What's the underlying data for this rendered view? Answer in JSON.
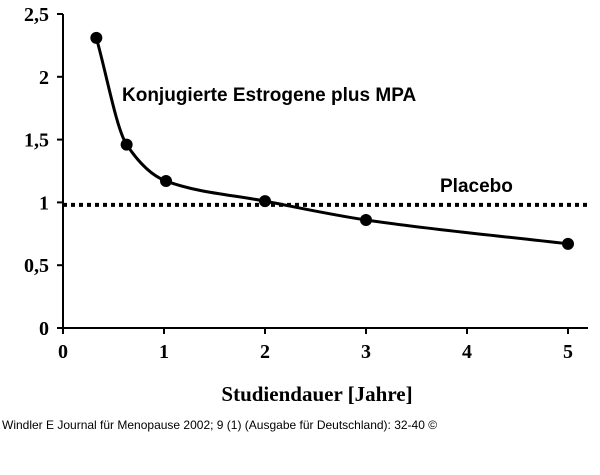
{
  "chart_data": {
    "type": "line",
    "xlabel": "Studiendauer [Jahre]",
    "ylabel": "",
    "xlim": [
      0,
      5.2
    ],
    "ylim": [
      0,
      2.5
    ],
    "x_ticks": [
      "0",
      "1",
      "2",
      "3",
      "4",
      "5"
    ],
    "y_ticks": [
      "0",
      "0,5",
      "1",
      "1,5",
      "2",
      "2,5"
    ],
    "grid": false,
    "series": [
      {
        "name": "Konjugierte Estrogene plus MPA",
        "x": [
          0.33,
          0.63,
          1.02,
          2.0,
          3.0,
          5.0
        ],
        "y": [
          2.31,
          1.46,
          1.17,
          1.01,
          0.86,
          0.67
        ]
      }
    ],
    "reference_line": {
      "name": "Placebo",
      "y": 0.98,
      "style": "dotted"
    },
    "annotations": {
      "series_label": "Konjugierte Estrogene plus MPA",
      "reference_label": "Placebo"
    }
  },
  "caption": "Windler E Journal für Menopause 2002; 9 (1) (Ausgabe für Deutschland): 32-40 ©"
}
